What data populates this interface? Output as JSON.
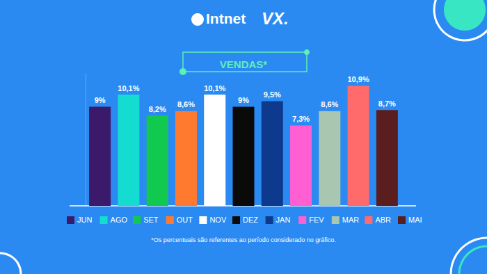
{
  "chart_data": {
    "type": "bar",
    "title": "VENDAS*",
    "logos": [
      "Intnet",
      "VX."
    ],
    "footnote": "*Os percentuais são referentes ao período considerado no gráfico.",
    "categories": [
      "JUN",
      "AGO",
      "SET",
      "OUT",
      "NOV",
      "DEZ",
      "JAN",
      "FEV",
      "MAR",
      "ABR",
      "MAI"
    ],
    "values": [
      9,
      10.1,
      8.2,
      8.6,
      10.1,
      9,
      9.5,
      7.3,
      8.6,
      10.9,
      8.7
    ],
    "value_labels": [
      "9%",
      "10,1%",
      "8,2%",
      "8,6%",
      "10,1%",
      "9%",
      "9,5%",
      "7,3%",
      "8,6%",
      "10,9%",
      "8,7%"
    ],
    "colors": [
      "#3b1a6b",
      "#14dcd0",
      "#12c94f",
      "#ff7a2e",
      "#ffffff",
      "#0a0a0a",
      "#0d3a8c",
      "#ff5fd2",
      "#a9c6b0",
      "#ff6b6b",
      "#5a1e1e"
    ],
    "ylim": [
      0,
      12
    ],
    "data_labels": true,
    "tick_labels": false,
    "grid": false,
    "legend": "bottom"
  }
}
